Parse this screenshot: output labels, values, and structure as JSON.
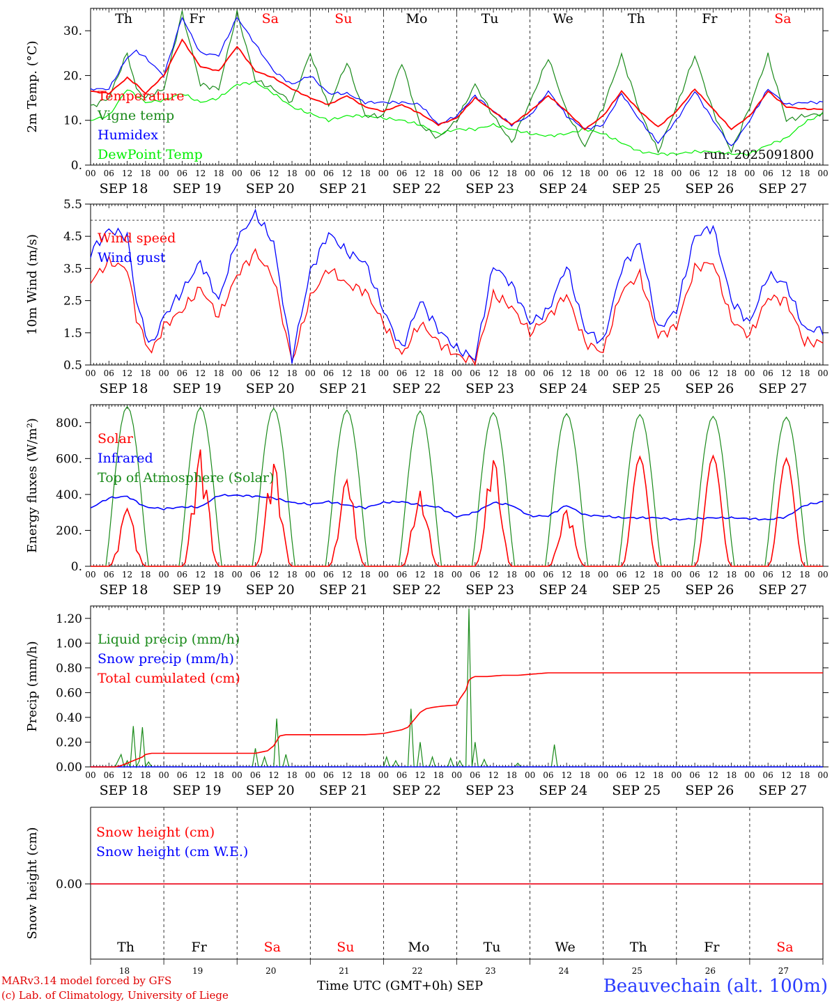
{
  "chart_data": [
    {
      "type": "line",
      "ylabel": "2m Temp. (°C)",
      "ylim": [
        0,
        35
      ],
      "yticks": [
        "0.",
        "10.",
        "20.",
        "30."
      ],
      "run_label": "run: 2025091800",
      "series": [
        {
          "name": "Temperature",
          "color": "#ff0000",
          "x_hours": [
            0,
            6,
            12,
            15,
            18,
            24,
            30,
            36,
            42,
            48,
            54,
            60,
            66,
            72,
            78,
            84,
            90,
            96,
            102,
            108,
            114,
            120,
            126,
            132,
            138,
            144,
            150,
            156,
            162,
            168,
            174,
            180,
            186,
            192,
            198,
            204,
            210,
            216,
            222,
            228,
            234,
            240
          ],
          "values": [
            16.5,
            16,
            19.5,
            18,
            16,
            20,
            28,
            22,
            21,
            26.5,
            21,
            19.5,
            17,
            15,
            13.5,
            15.5,
            13,
            12,
            13.5,
            11.5,
            9,
            10.5,
            15,
            12,
            9,
            12,
            15.5,
            12,
            8,
            11,
            16.5,
            12,
            8.5,
            12,
            17,
            12.5,
            8,
            11,
            16.5,
            13,
            12.5,
            12.5
          ]
        },
        {
          "name": "Vigne temp",
          "color": "#1a8a1a",
          "x_hours": [
            0,
            6,
            12,
            15,
            18,
            24,
            30,
            36,
            42,
            48,
            54,
            60,
            66,
            72,
            78,
            84,
            90,
            96,
            102,
            108,
            114,
            120,
            126,
            132,
            138,
            144,
            150,
            156,
            162,
            168,
            174,
            180,
            186,
            192,
            198,
            204,
            210,
            216,
            222,
            228,
            234,
            240
          ],
          "values": [
            13,
            15,
            25,
            17,
            15,
            17,
            34,
            18,
            17,
            34,
            19,
            17,
            14,
            25,
            13,
            23,
            11,
            11,
            23,
            9,
            6,
            10,
            18,
            11,
            5,
            14,
            24,
            12,
            4,
            13,
            24.5,
            12,
            3,
            13,
            24.5,
            12,
            3,
            13,
            24.5,
            10,
            11,
            11.5
          ]
        },
        {
          "name": "Humidex",
          "color": "#0000ff",
          "x_hours": [
            0,
            6,
            12,
            15,
            18,
            24,
            30,
            36,
            42,
            48,
            54,
            60,
            66,
            72,
            78,
            84,
            90,
            96,
            102,
            108,
            114,
            120,
            126,
            132,
            138,
            144,
            150,
            156,
            162,
            168,
            174,
            180,
            186,
            192,
            198,
            204,
            210,
            216,
            222,
            228,
            234,
            240
          ],
          "values": [
            17,
            17,
            24,
            25.5,
            24,
            20,
            33,
            25,
            24.5,
            33,
            27,
            21,
            18,
            20,
            16,
            16,
            14,
            14,
            14,
            13.5,
            9,
            11,
            15.5,
            12,
            9,
            11,
            16.5,
            11,
            8,
            9,
            16,
            10,
            5,
            10,
            16.5,
            10,
            4,
            10,
            17,
            13.5,
            14,
            14
          ]
        },
        {
          "name": "DewPoint Temp",
          "color": "#00ee00",
          "x_hours": [
            0,
            6,
            12,
            18,
            24,
            30,
            36,
            42,
            48,
            54,
            60,
            66,
            72,
            78,
            84,
            90,
            96,
            102,
            108,
            114,
            120,
            126,
            132,
            138,
            144,
            150,
            156,
            162,
            168,
            174,
            180,
            186,
            192,
            198,
            204,
            210,
            216,
            222,
            228,
            234,
            240
          ],
          "values": [
            10,
            11,
            17,
            14,
            14.5,
            16,
            14,
            15,
            18,
            18.5,
            16,
            13,
            11.5,
            10,
            11,
            11,
            10.5,
            10,
            9,
            7,
            8,
            8,
            9,
            8,
            7,
            6.5,
            7,
            8,
            7,
            5,
            3,
            2.5,
            2.5,
            3,
            3,
            2.5,
            2.5,
            4.5,
            6,
            9.5,
            11.5
          ]
        }
      ]
    },
    {
      "type": "line",
      "ylabel": "10m Wind (m/s)",
      "ylim": [
        0.5,
        5.5
      ],
      "yticks": [
        "0.5",
        "1.5",
        "2.5",
        "3.5",
        "4.5",
        "5.5"
      ],
      "ref_line": 5.0,
      "series": [
        {
          "name": "Wind speed",
          "color": "#ff0000",
          "x_hours": [
            0,
            6,
            12,
            15,
            18,
            20,
            24,
            30,
            36,
            42,
            48,
            54,
            60,
            66,
            72,
            78,
            84,
            90,
            96,
            102,
            108,
            114,
            120,
            126,
            132,
            138,
            144,
            150,
            156,
            162,
            168,
            174,
            180,
            186,
            192,
            198,
            204,
            210,
            216,
            222,
            228,
            234,
            240
          ],
          "values": [
            3.1,
            3.7,
            3.5,
            2,
            1.2,
            0.9,
            1.7,
            2.2,
            2.9,
            2,
            3.3,
            4,
            3.2,
            0.6,
            2.6,
            3.5,
            3,
            2.8,
            1.8,
            0.8,
            1.8,
            1.2,
            0.8,
            0.6,
            2.7,
            2.3,
            1.5,
            2,
            2.7,
            1.2,
            0.9,
            2.8,
            3.3,
            1.4,
            1.7,
            3.5,
            3.7,
            1.9,
            1.4,
            2.6,
            2.5,
            1.2,
            1.2
          ]
        },
        {
          "name": "Wind gust",
          "color": "#0000ff",
          "x_hours": [
            0,
            6,
            12,
            15,
            18,
            20,
            24,
            30,
            36,
            42,
            48,
            54,
            60,
            66,
            72,
            78,
            84,
            90,
            96,
            102,
            108,
            114,
            120,
            126,
            132,
            138,
            144,
            150,
            156,
            162,
            168,
            174,
            180,
            186,
            192,
            198,
            204,
            210,
            216,
            222,
            228,
            234,
            240
          ],
          "values": [
            4,
            4.7,
            4.5,
            2.5,
            1.5,
            1.1,
            2,
            2.8,
            3.7,
            2.5,
            4.4,
            5.2,
            4.3,
            0.7,
            3.4,
            4.6,
            4,
            3.7,
            2.2,
            1,
            2.5,
            1.6,
            1,
            0.7,
            3.6,
            3,
            1.8,
            2.2,
            3.6,
            1.6,
            1.2,
            3.5,
            4.3,
            1.6,
            2.2,
            4.5,
            4.8,
            2.5,
            1.8,
            3.3,
            3,
            1.6,
            1.6
          ]
        }
      ]
    },
    {
      "type": "line",
      "ylabel": "Energy fluxes (W/m²)",
      "ylim": [
        0,
        900
      ],
      "yticks": [
        "0.",
        "200.",
        "400.",
        "600.",
        "800."
      ],
      "series": [
        {
          "name": "Solar",
          "color": "#ff0000",
          "peaks": [
            320,
            650,
            570,
            480,
            420,
            590,
            310,
            610,
            615,
            600
          ]
        },
        {
          "name": "Infrared",
          "color": "#0000ff",
          "x_hours": [
            0,
            6,
            12,
            18,
            24,
            30,
            36,
            42,
            48,
            54,
            60,
            66,
            72,
            78,
            84,
            90,
            96,
            102,
            108,
            114,
            120,
            126,
            132,
            138,
            144,
            150,
            156,
            162,
            168,
            174,
            180,
            186,
            192,
            198,
            204,
            210,
            216,
            222,
            228,
            234,
            240
          ],
          "values": [
            325,
            380,
            390,
            330,
            320,
            330,
            330,
            395,
            395,
            390,
            380,
            355,
            345,
            360,
            340,
            325,
            355,
            360,
            340,
            330,
            275,
            300,
            355,
            340,
            280,
            280,
            340,
            285,
            280,
            270,
            270,
            270,
            260,
            265,
            270,
            270,
            265,
            260,
            275,
            340,
            360
          ]
        },
        {
          "name": "Top of Atmosphere (Solar)",
          "color": "#1a8a1a",
          "peaks": [
            890,
            885,
            880,
            870,
            865,
            855,
            850,
            845,
            835,
            830
          ]
        }
      ]
    },
    {
      "type": "line",
      "ylabel": "Precip (mm/h)",
      "ylim": [
        0,
        1.3
      ],
      "yticks": [
        "0.00",
        "0.20",
        "0.40",
        "0.60",
        "0.80",
        "1.00",
        "1.20"
      ],
      "series": [
        {
          "name": "Liquid precip (mm/h)",
          "color": "#1a8a1a",
          "spikes": [
            [
              9,
              0.05
            ],
            [
              10,
              0.1
            ],
            [
              12,
              0.05
            ],
            [
              14,
              0.33
            ],
            [
              16,
              0.05
            ],
            [
              17,
              0.32
            ],
            [
              19,
              0.04
            ],
            [
              54,
              0.15
            ],
            [
              57,
              0.08
            ],
            [
              61,
              0.39
            ],
            [
              64,
              0.1
            ],
            [
              97,
              0.08
            ],
            [
              100,
              0.05
            ],
            [
              105,
              0.47
            ],
            [
              108,
              0.2
            ],
            [
              112,
              0.08
            ],
            [
              118,
              0.07
            ],
            [
              121,
              0.05
            ],
            [
              124,
              1.28
            ],
            [
              126,
              0.2
            ],
            [
              129,
              0.06
            ],
            [
              140,
              0.03
            ],
            [
              152,
              0.18
            ]
          ]
        },
        {
          "name": "Snow precip (mm/h)",
          "color": "#0000ff",
          "x_hours": [
            0,
            240
          ],
          "values": [
            0,
            0
          ]
        },
        {
          "name": "Total cumulated (cm)",
          "color": "#ff0000",
          "x_hours": [
            0,
            8,
            10,
            13,
            15,
            17,
            18,
            20,
            48,
            54,
            58,
            60,
            62,
            64,
            66,
            90,
            96,
            100,
            102,
            104,
            106,
            108,
            110,
            112,
            115,
            120,
            121,
            123,
            124,
            125,
            126,
            130,
            135,
            140,
            150,
            240
          ],
          "values": [
            0,
            0,
            0.01,
            0.04,
            0.06,
            0.08,
            0.1,
            0.11,
            0.11,
            0.11,
            0.13,
            0.17,
            0.25,
            0.26,
            0.26,
            0.26,
            0.27,
            0.29,
            0.3,
            0.32,
            0.38,
            0.44,
            0.47,
            0.48,
            0.49,
            0.5,
            0.55,
            0.62,
            0.7,
            0.72,
            0.73,
            0.73,
            0.74,
            0.74,
            0.76,
            0.76
          ]
        }
      ]
    },
    {
      "type": "line",
      "ylabel": "Snow height (cm)",
      "yticks": [
        "0.00"
      ],
      "series": [
        {
          "name": "Snow height (cm)",
          "color": "#ff0000",
          "x_hours": [
            0,
            240
          ],
          "values": [
            0,
            0
          ]
        },
        {
          "name": "Snow height (cm W.E.)",
          "color": "#0000ff",
          "x_hours": [
            0,
            240
          ],
          "values": [
            0,
            0
          ]
        }
      ]
    }
  ],
  "days": [
    {
      "dow": "Th",
      "date": "SEP 18",
      "num": "18",
      "weekend": false
    },
    {
      "dow": "Fr",
      "date": "SEP 19",
      "num": "19",
      "weekend": false
    },
    {
      "dow": "Sa",
      "date": "SEP 20",
      "num": "20",
      "weekend": true
    },
    {
      "dow": "Su",
      "date": "SEP 21",
      "num": "21",
      "weekend": true
    },
    {
      "dow": "Mo",
      "date": "SEP 22",
      "num": "22",
      "weekend": false
    },
    {
      "dow": "Tu",
      "date": "SEP 23",
      "num": "23",
      "weekend": false
    },
    {
      "dow": "We",
      "date": "SEP 24",
      "num": "24",
      "weekend": false
    },
    {
      "dow": "Th",
      "date": "SEP 25",
      "num": "25",
      "weekend": false
    },
    {
      "dow": "Fr",
      "date": "SEP 26",
      "num": "26",
      "weekend": false
    },
    {
      "dow": "Sa",
      "date": "SEP 27",
      "num": "27",
      "weekend": true
    }
  ],
  "hour_labels": [
    "00",
    "06",
    "12",
    "18"
  ],
  "end_hour_label": "00",
  "colors": {
    "weekend": "#ff0000",
    "weekday": "#000000"
  },
  "footer": {
    "credit_line1": "MARv3.14 model forced by GFS",
    "credit_line2": "(c) Lab. of Climatology, University of Liege",
    "axis_title": "Time UTC (GMT+0h) SEP",
    "station": "Beauvechain (alt. 100m)"
  }
}
